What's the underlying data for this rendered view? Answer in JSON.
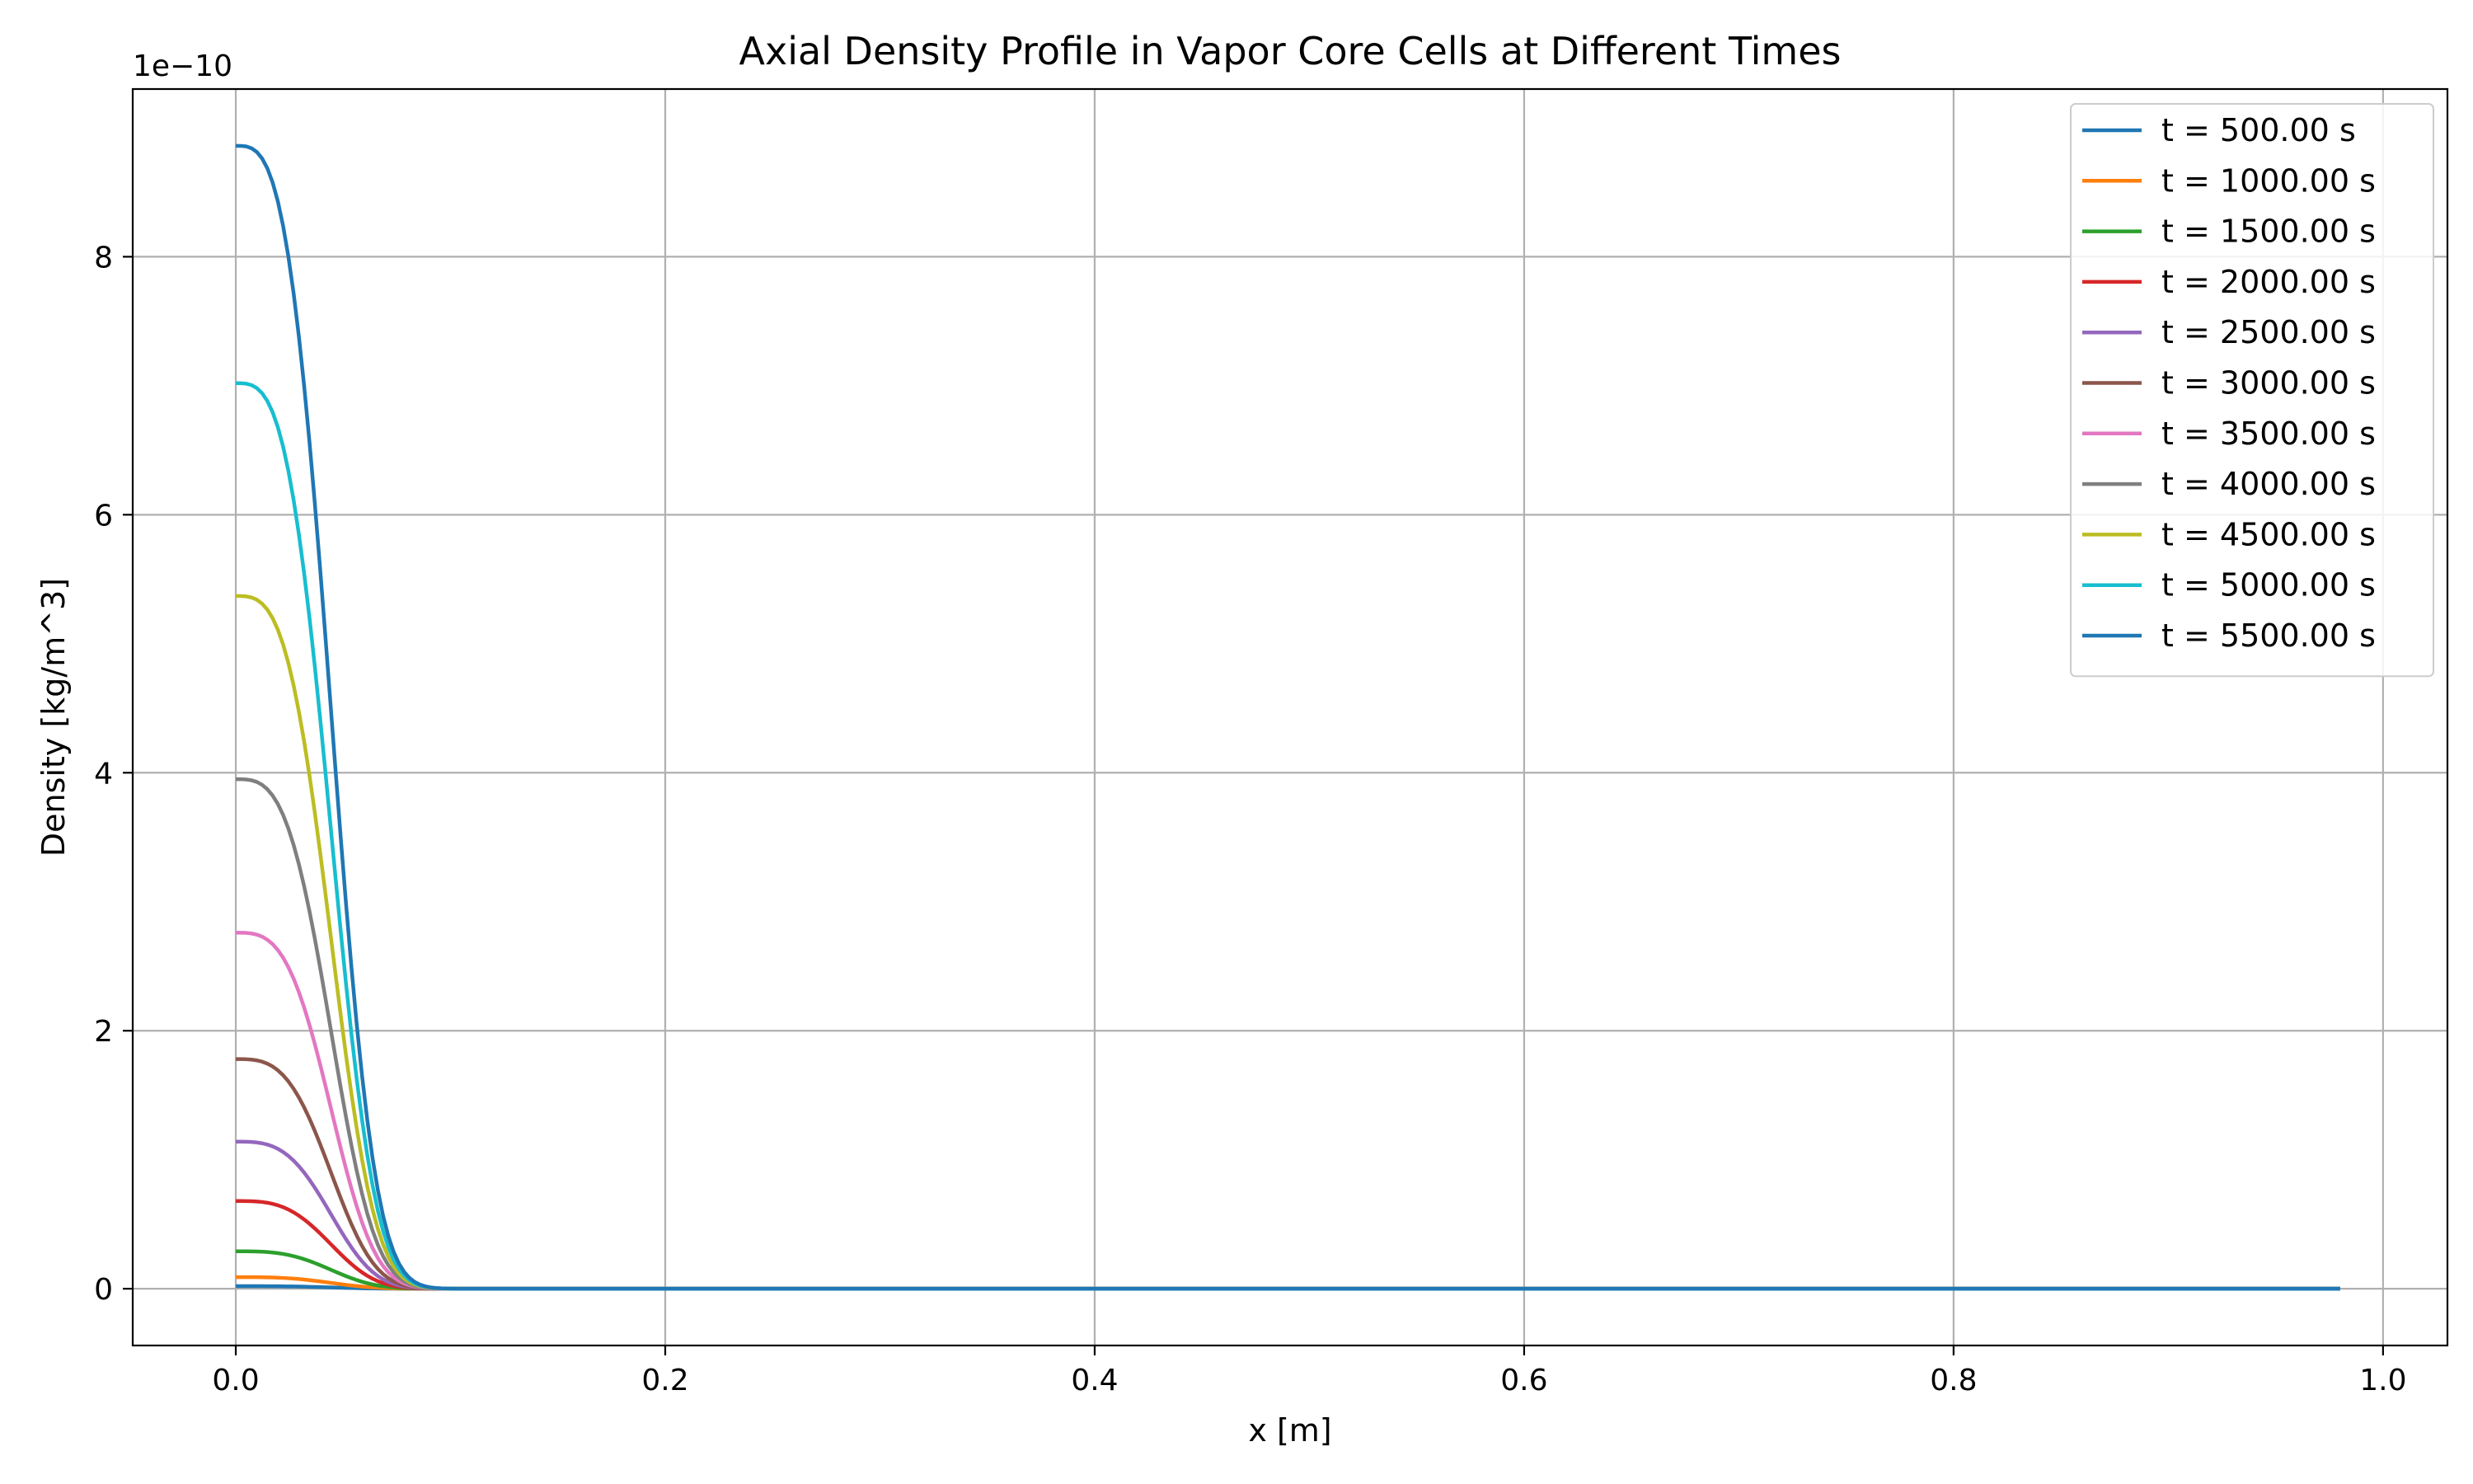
{
  "chart_data": {
    "type": "line",
    "title": "Axial Density Profile in Vapor Core Cells at Different Times",
    "xlabel": "x [m]",
    "ylabel": "Density [kg/m^3]",
    "y_offset_label": "1e−10",
    "xlim": [
      -0.048,
      1.03
    ],
    "ylim": [
      -0.44,
      9.3
    ],
    "y_scale_factor": "1e-10",
    "xticks": [
      0.0,
      0.2,
      0.4,
      0.6,
      0.8,
      1.0
    ],
    "xtick_labels": [
      "0.0",
      "0.2",
      "0.4",
      "0.6",
      "0.8",
      "1.0"
    ],
    "yticks": [
      0,
      2,
      4,
      6,
      8
    ],
    "ytick_labels": [
      "0",
      "2",
      "4",
      "6",
      "8"
    ],
    "grid": true,
    "legend_position": "top-right",
    "x_max_data": 0.98,
    "series": [
      {
        "name": "t = 500.00 s",
        "color": "#1f77b4",
        "peak": 0.02,
        "x": [
          0.0,
          0.02,
          0.04,
          0.06,
          0.08,
          0.1,
          0.12,
          0.15,
          0.2,
          0.4,
          0.6,
          0.8,
          0.98
        ],
        "y": [
          0.02,
          0.0194,
          0.013,
          0.0068,
          0.0028,
          0.0009,
          0.0002,
          0.0,
          0.0,
          0.0,
          0.0,
          0.0,
          0.0
        ]
      },
      {
        "name": "t = 1000.00 s",
        "color": "#ff7f0e",
        "peak": 0.09,
        "x": [
          0.0,
          0.02,
          0.04,
          0.06,
          0.08,
          0.1,
          0.12,
          0.15,
          0.2,
          0.4,
          0.6,
          0.8,
          0.98
        ],
        "y": [
          0.09,
          0.087,
          0.058,
          0.03,
          0.012,
          0.004,
          0.001,
          0.0,
          0.0,
          0.0,
          0.0,
          0.0,
          0.0
        ]
      },
      {
        "name": "t = 1500.00 s",
        "color": "#2ca02c",
        "peak": 0.29,
        "x": [
          0.0,
          0.02,
          0.04,
          0.06,
          0.08,
          0.1,
          0.12,
          0.15,
          0.2,
          0.4,
          0.6,
          0.8,
          0.98
        ],
        "y": [
          0.29,
          0.281,
          0.188,
          0.099,
          0.04,
          0.013,
          0.003,
          0.0,
          0.0,
          0.0,
          0.0,
          0.0,
          0.0
        ]
      },
      {
        "name": "t = 2000.00 s",
        "color": "#d62728",
        "peak": 0.68,
        "x": [
          0.0,
          0.02,
          0.04,
          0.06,
          0.08,
          0.1,
          0.12,
          0.15,
          0.2,
          0.4,
          0.6,
          0.8,
          0.98
        ],
        "y": [
          0.68,
          0.66,
          0.44,
          0.23,
          0.095,
          0.031,
          0.008,
          0.0,
          0.0,
          0.0,
          0.0,
          0.0,
          0.0
        ]
      },
      {
        "name": "t = 2500.00 s",
        "color": "#9467bd",
        "peak": 1.14,
        "x": [
          0.0,
          0.02,
          0.04,
          0.06,
          0.08,
          0.1,
          0.12,
          0.15,
          0.2,
          0.4,
          0.6,
          0.8,
          0.98
        ],
        "y": [
          1.14,
          1.105,
          0.74,
          0.39,
          0.16,
          0.052,
          0.013,
          0.001,
          0.0,
          0.0,
          0.0,
          0.0,
          0.0
        ]
      },
      {
        "name": "t = 3000.00 s",
        "color": "#8c564b",
        "peak": 1.78,
        "x": [
          0.0,
          0.02,
          0.04,
          0.06,
          0.08,
          0.1,
          0.12,
          0.15,
          0.2,
          0.4,
          0.6,
          0.8,
          0.98
        ],
        "y": [
          1.78,
          1.725,
          1.16,
          0.61,
          0.25,
          0.082,
          0.021,
          0.002,
          0.0,
          0.0,
          0.0,
          0.0,
          0.0
        ]
      },
      {
        "name": "t = 3500.00 s",
        "color": "#e377c2",
        "peak": 2.76,
        "x": [
          0.0,
          0.02,
          0.04,
          0.06,
          0.08,
          0.1,
          0.12,
          0.15,
          0.2,
          0.4,
          0.6,
          0.8,
          0.98
        ],
        "y": [
          2.76,
          2.675,
          1.79,
          0.94,
          0.39,
          0.127,
          0.033,
          0.003,
          0.0,
          0.0,
          0.0,
          0.0,
          0.0
        ]
      },
      {
        "name": "t = 4000.00 s",
        "color": "#7f7f7f",
        "peak": 3.95,
        "x": [
          0.0,
          0.02,
          0.04,
          0.06,
          0.08,
          0.1,
          0.12,
          0.15,
          0.2,
          0.4,
          0.6,
          0.8,
          0.98
        ],
        "y": [
          3.95,
          3.83,
          2.57,
          1.35,
          0.55,
          0.18,
          0.047,
          0.004,
          0.0,
          0.0,
          0.0,
          0.0,
          0.0
        ]
      },
      {
        "name": "t = 4500.00 s",
        "color": "#bcbd22",
        "peak": 5.37,
        "x": [
          0.0,
          0.02,
          0.04,
          0.06,
          0.08,
          0.1,
          0.12,
          0.15,
          0.2,
          0.4,
          0.6,
          0.8,
          0.98
        ],
        "y": [
          5.37,
          5.21,
          3.49,
          1.83,
          0.75,
          0.245,
          0.064,
          0.006,
          0.0,
          0.0,
          0.0,
          0.0,
          0.0
        ]
      },
      {
        "name": "t = 5000.00 s",
        "color": "#17becf",
        "peak": 7.02,
        "x": [
          0.0,
          0.02,
          0.04,
          0.06,
          0.08,
          0.1,
          0.12,
          0.15,
          0.2,
          0.4,
          0.6,
          0.8,
          0.98
        ],
        "y": [
          7.02,
          6.81,
          4.56,
          2.39,
          0.98,
          0.32,
          0.084,
          0.008,
          0.0,
          0.0,
          0.0,
          0.0,
          0.0
        ]
      },
      {
        "name": "t = 5500.00 s",
        "color": "#1f77b4",
        "peak": 8.86,
        "x": [
          0.0,
          0.02,
          0.04,
          0.06,
          0.08,
          0.1,
          0.12,
          0.15,
          0.2,
          0.4,
          0.6,
          0.8,
          0.98
        ],
        "y": [
          8.86,
          8.59,
          5.76,
          3.02,
          1.24,
          0.404,
          0.106,
          0.01,
          0.0,
          0.0,
          0.0,
          0.0,
          0.0
        ]
      }
    ]
  }
}
